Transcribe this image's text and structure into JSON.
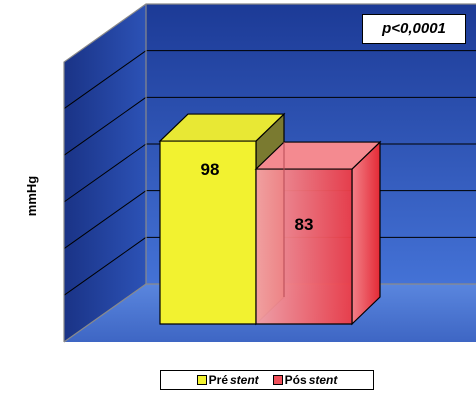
{
  "chart_data": {
    "type": "bar",
    "categories": [
      "Pré stent",
      "Pós stent"
    ],
    "values": [
      98,
      83
    ],
    "ylabel": "mmHg",
    "ylim": [
      0,
      120
    ],
    "annotation": "p<0,0001",
    "legend": [
      {
        "prefix": "Pré ",
        "suffix": "stent",
        "color": "#f2f230"
      },
      {
        "prefix": "Pós ",
        "suffix": "stent",
        "color": "#f0505a"
      }
    ],
    "grid": true,
    "legend_position": "bottom"
  },
  "colors": {
    "background_top": "#1e3e9c",
    "background_bottom": "#4a7ade",
    "bar1": "#f2f230",
    "bar1_side": "#7a7a30",
    "bar2": "#f0505a"
  }
}
